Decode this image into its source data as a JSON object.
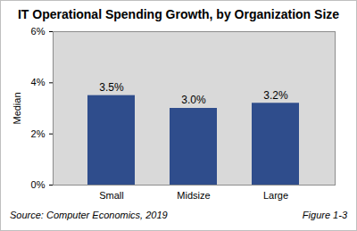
{
  "chart_data": {
    "type": "bar",
    "title": "IT Operational Spending Growth, by Organization Size",
    "y_label": "Median",
    "categories": [
      "Small",
      "Midsize",
      "Large"
    ],
    "values": [
      3.5,
      3.0,
      3.2
    ],
    "value_labels": [
      "3.5%",
      "3.0%",
      "3.2%"
    ],
    "data_labels": true,
    "color": "#2f4d8c",
    "ylim": [
      0,
      6
    ],
    "yticks": [
      {
        "value": 0,
        "label": "0%"
      },
      {
        "value": 2,
        "label": "2%"
      },
      {
        "value": 4,
        "label": "4%"
      },
      {
        "value": 6,
        "label": "6%"
      }
    ],
    "grid": false,
    "annotations": [
      "Source: Computer Economics, 2019",
      "Figure 1-3"
    ]
  }
}
